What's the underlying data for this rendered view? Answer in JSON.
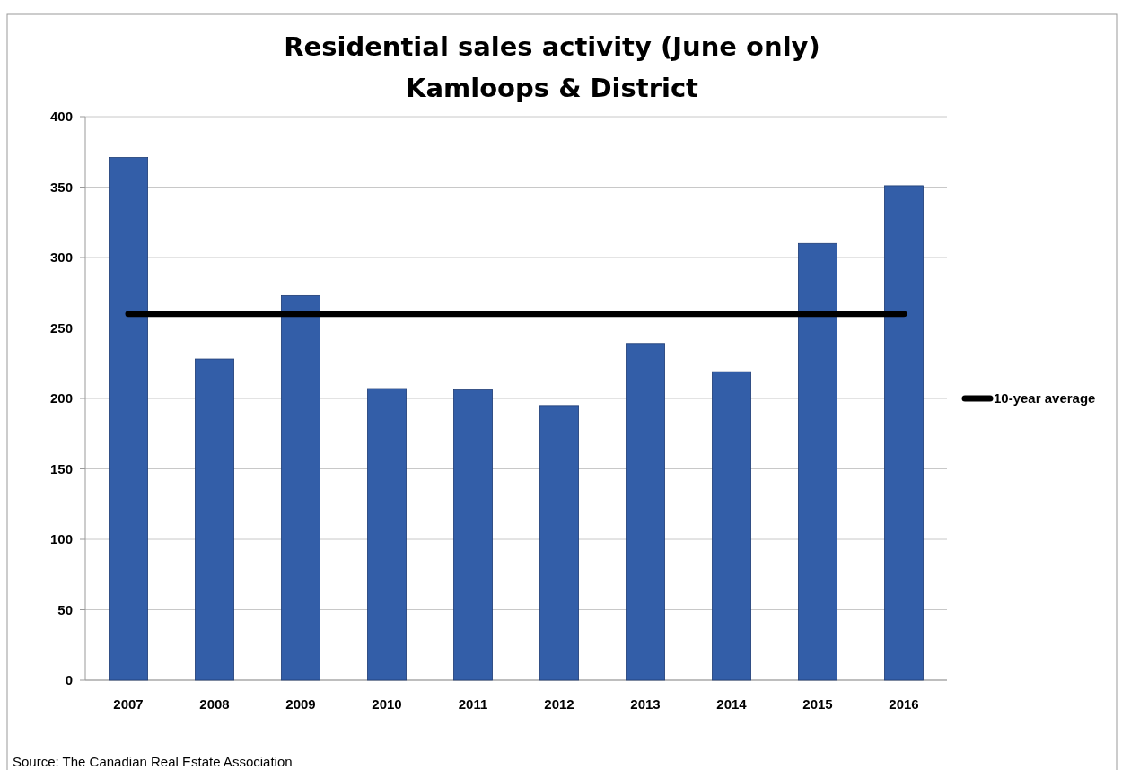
{
  "chart_data": {
    "type": "bar",
    "title": "Residential sales activity (June only)",
    "subtitle": "Kamloops & District",
    "annotations": [
      "Source: The Canadian Real Estate Association"
    ],
    "categories": [
      "2007",
      "2008",
      "2009",
      "2010",
      "2011",
      "2012",
      "2013",
      "2014",
      "2015",
      "2016"
    ],
    "series": [
      {
        "color": "#335ea8",
        "values": [
          371,
          228,
          273,
          207,
          206,
          195,
          239,
          219,
          310,
          351
        ]
      },
      {
        "type": "line",
        "name": "10-year average",
        "color": "#000000",
        "values": [
          260,
          260,
          260,
          260,
          260,
          260,
          260,
          260,
          260,
          260
        ]
      }
    ],
    "ylim": [
      0,
      400
    ],
    "yticks": [
      0,
      50,
      100,
      150,
      200,
      250,
      300,
      350,
      400
    ],
    "grid": "y",
    "legend": "right"
  }
}
